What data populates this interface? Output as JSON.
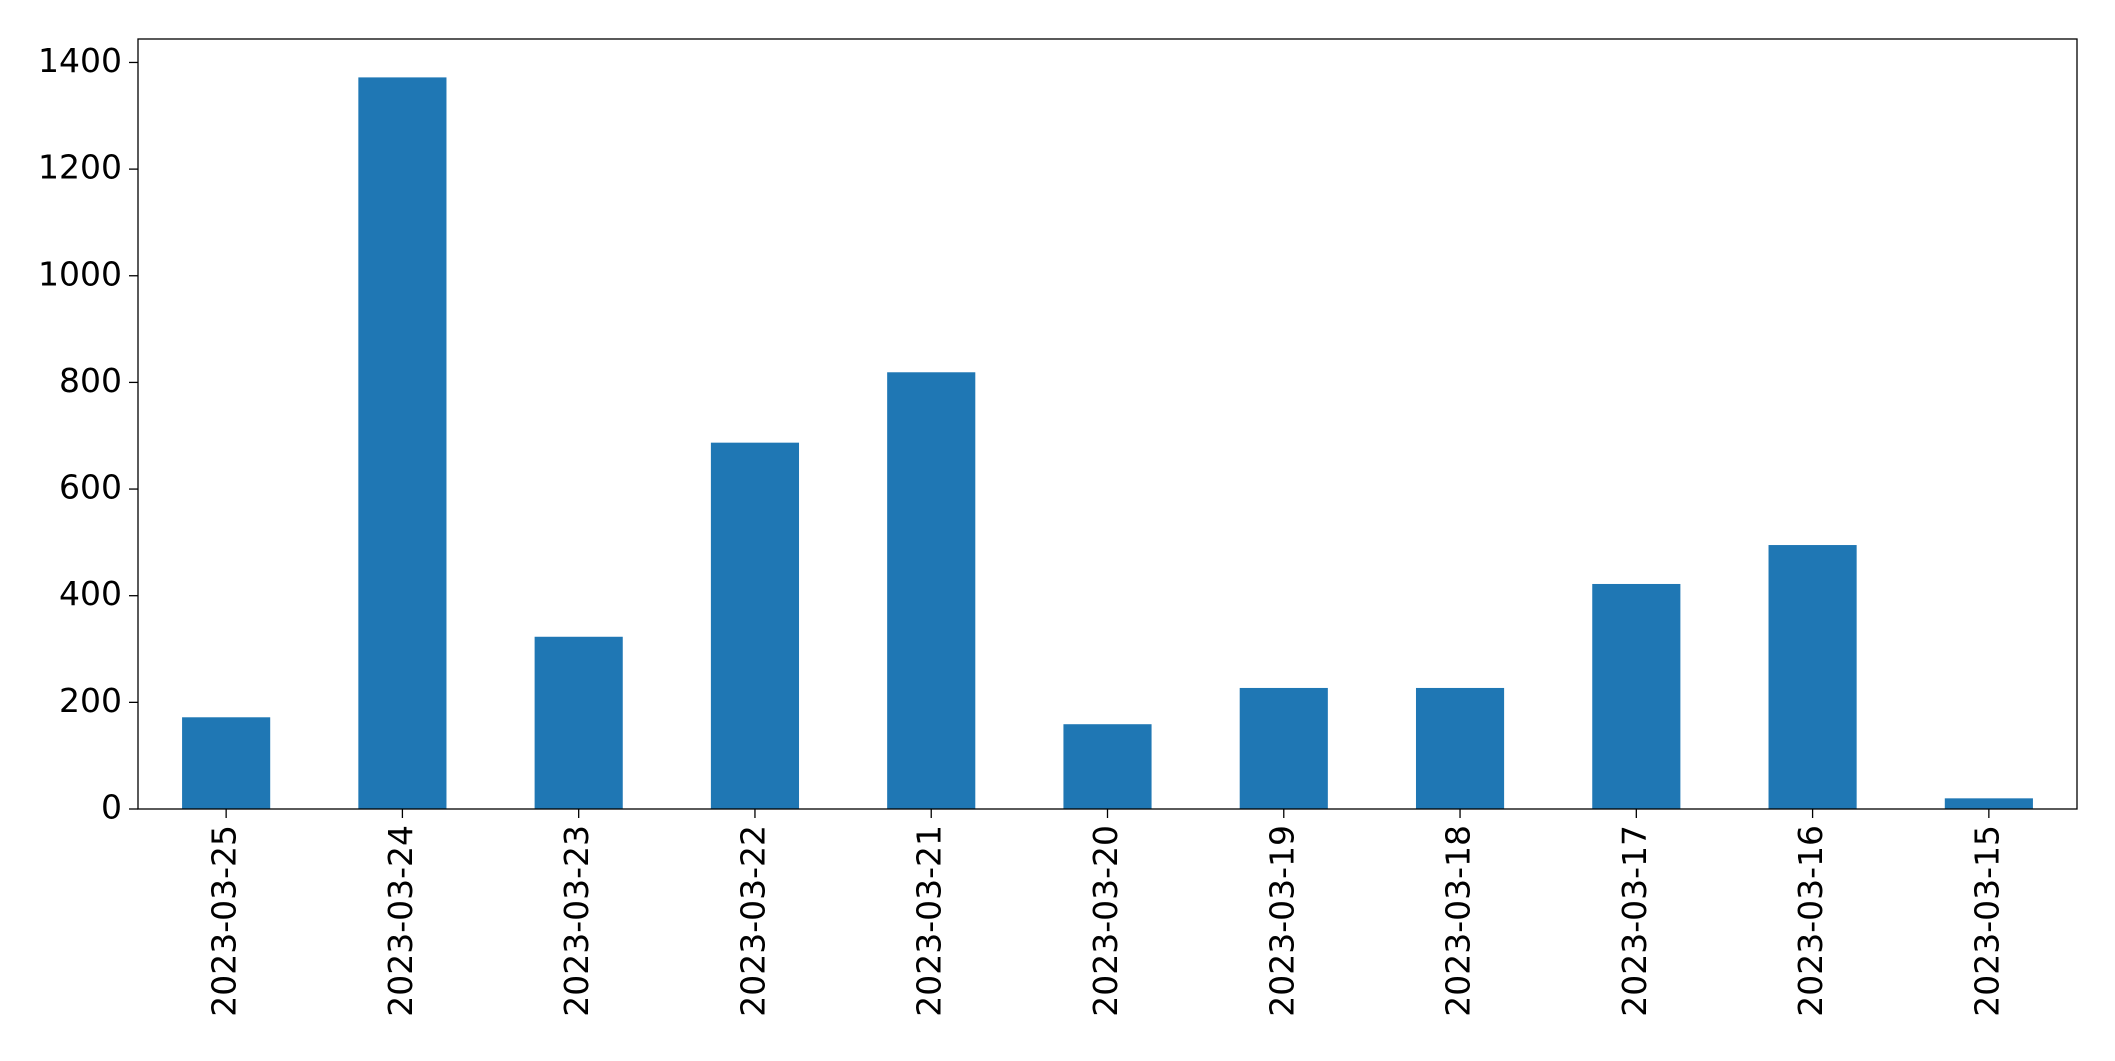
{
  "chart_data": {
    "type": "bar",
    "categories": [
      "2023-03-25",
      "2023-03-24",
      "2023-03-23",
      "2023-03-22",
      "2023-03-21",
      "2023-03-20",
      "2023-03-19",
      "2023-03-18",
      "2023-03-17",
      "2023-03-16",
      "2023-03-15"
    ],
    "values": [
      172,
      1372,
      323,
      687,
      819,
      159,
      227,
      227,
      422,
      495,
      20
    ],
    "color": "#1f77b4",
    "ylim": [
      0,
      1444
    ],
    "yticks": [
      0,
      200,
      400,
      600,
      800,
      1000,
      1200,
      1400
    ],
    "grid": false
  }
}
